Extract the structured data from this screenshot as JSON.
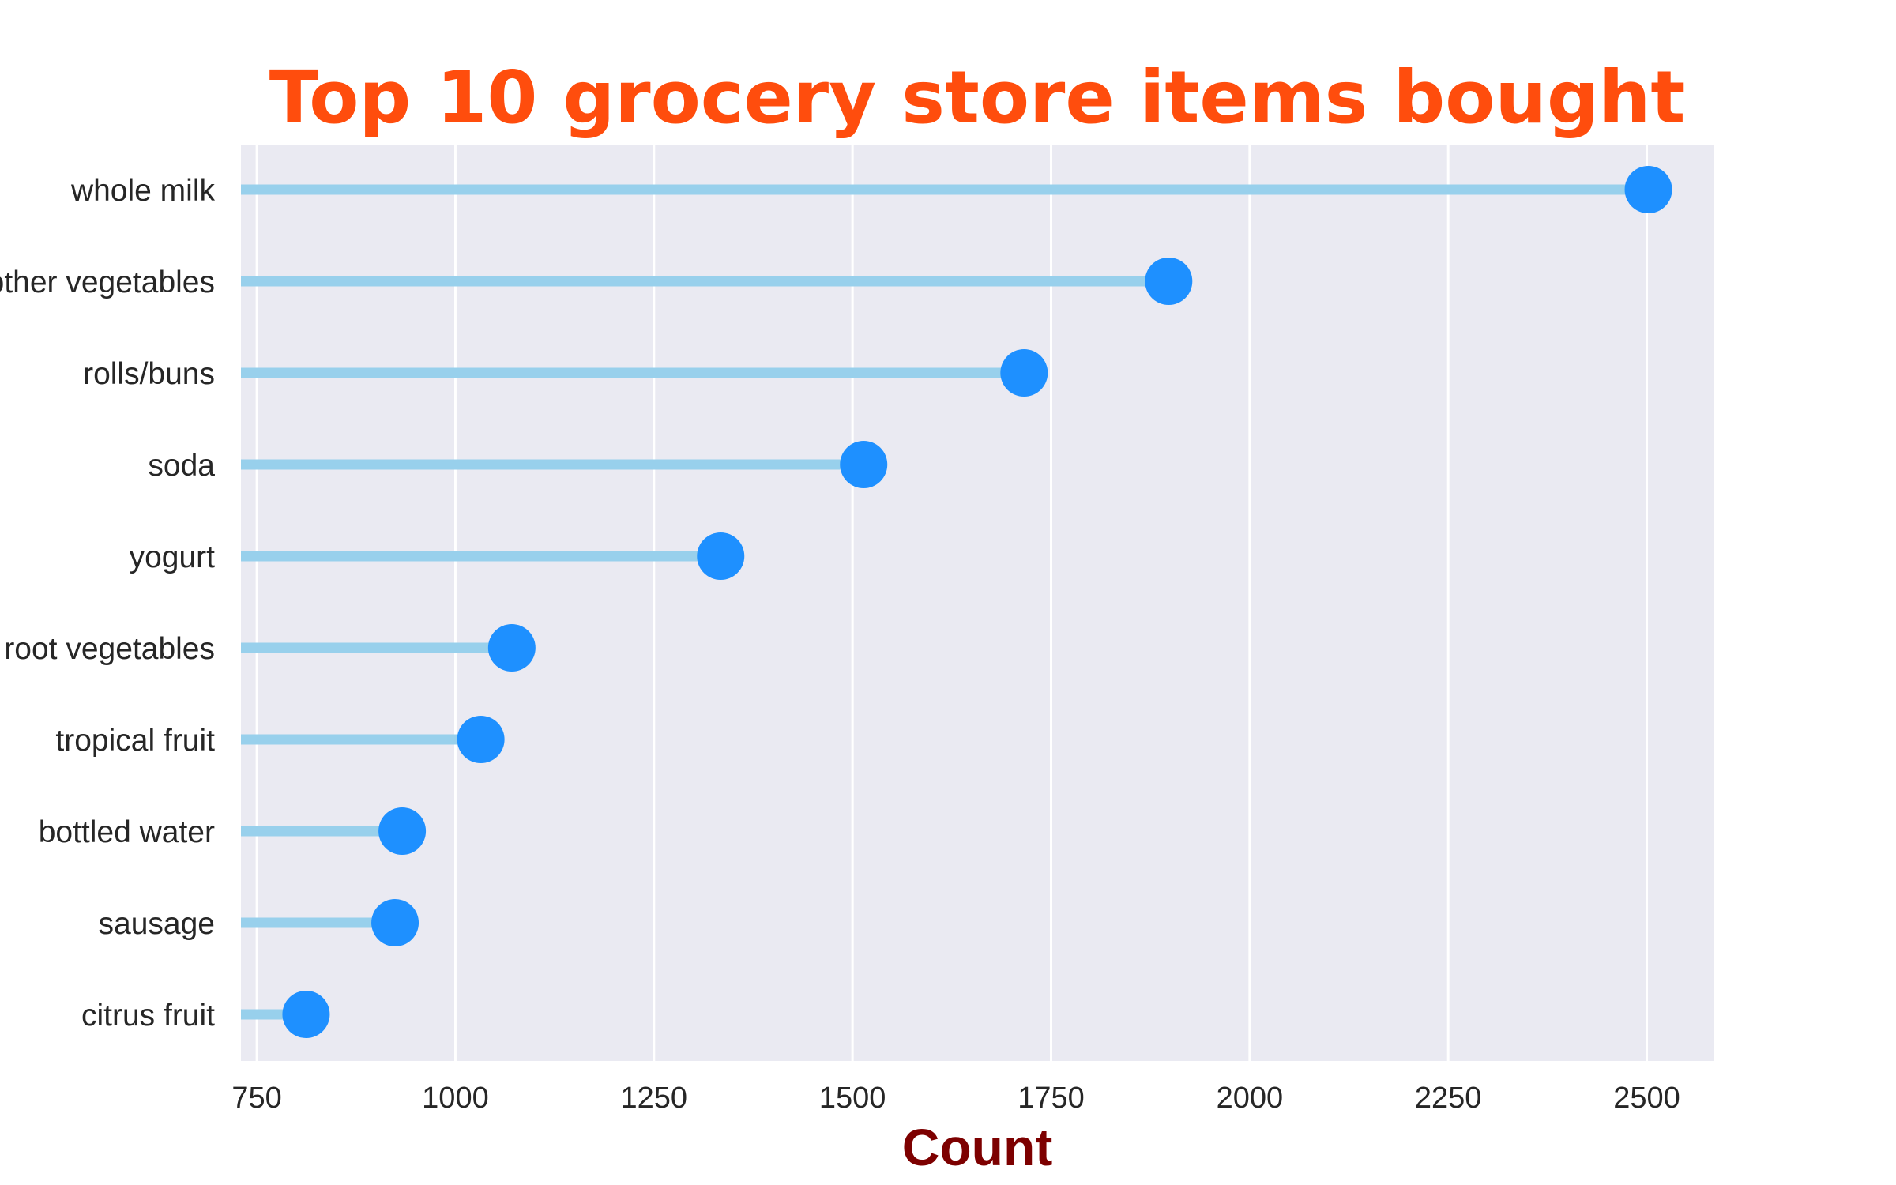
{
  "chart_data": {
    "type": "lollipop",
    "orientation": "horizontal",
    "title": "Top 10 grocery store items bought",
    "xlabel": "Count",
    "ylabel": "",
    "xlim": [
      730,
      2585
    ],
    "xticks": [
      750,
      1000,
      1250,
      1500,
      1750,
      2000,
      2250,
      2500
    ],
    "xtick_labels": [
      "750",
      "1000",
      "1250",
      "1500",
      "1750",
      "2000",
      "2250",
      "2500"
    ],
    "categories": [
      "whole milk",
      "other vegetables",
      "rolls/buns",
      "soda",
      "yogurt",
      "root vegetables",
      "tropical fruit",
      "bottled water",
      "sausage",
      "citrus fruit"
    ],
    "values": [
      2502,
      1898,
      1716,
      1514,
      1334,
      1071,
      1032,
      933,
      924,
      812
    ],
    "grid": "vertical",
    "colors": {
      "plot_background": "#eaeaf2",
      "grid": "#ffffff",
      "stem": "#98d0ec",
      "marker": "#1e90ff",
      "title": "#ff4d0d",
      "xlabel": "#7d0000",
      "tick_text": "#262626"
    }
  }
}
